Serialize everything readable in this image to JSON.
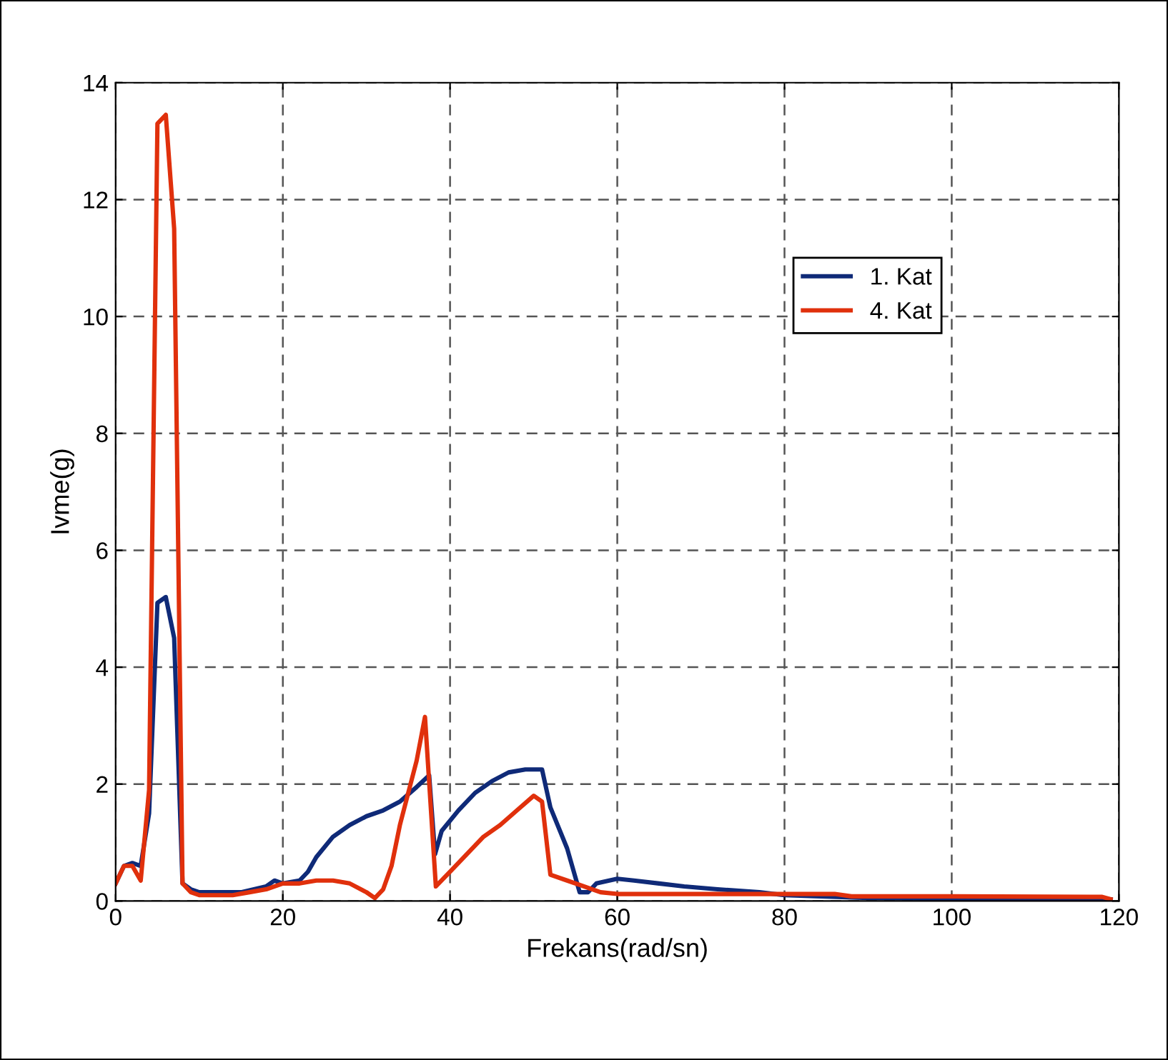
{
  "chart_data": {
    "type": "line",
    "xlabel": "Frekans(rad/sn)",
    "ylabel": "Ivme(g)",
    "xlim": [
      0,
      120
    ],
    "xticks": [
      0,
      20,
      40,
      60,
      80,
      100,
      120
    ],
    "ylim": [
      0,
      14
    ],
    "yticks": [
      0,
      2,
      4,
      6,
      8,
      10,
      12,
      14
    ],
    "grid": true,
    "legend": "right",
    "line_style": "solid",
    "series": [
      {
        "name": "1. Kat",
        "color": "#0f2a78",
        "x": [
          0,
          1,
          2,
          3,
          4,
          5,
          6,
          7,
          8,
          9,
          10,
          12,
          15,
          18,
          19,
          20,
          22,
          23,
          24,
          26,
          28,
          30,
          32,
          34,
          36,
          37.5,
          38.2,
          39,
          41,
          43,
          45,
          47,
          49,
          51,
          52,
          54,
          55.5,
          56.5,
          57.5,
          60,
          62,
          65,
          68,
          72,
          77,
          80,
          90,
          100,
          119
        ],
        "values": [
          0.3,
          0.6,
          0.65,
          0.6,
          1.5,
          5.1,
          5.2,
          4.5,
          0.3,
          0.2,
          0.15,
          0.15,
          0.15,
          0.25,
          0.35,
          0.3,
          0.35,
          0.5,
          0.75,
          1.1,
          1.3,
          1.45,
          1.55,
          1.7,
          1.95,
          2.15,
          0.8,
          1.2,
          1.55,
          1.85,
          2.05,
          2.2,
          2.25,
          2.25,
          1.6,
          0.9,
          0.15,
          0.15,
          0.3,
          0.38,
          0.35,
          0.3,
          0.25,
          0.2,
          0.15,
          0.1,
          0.05,
          0.04,
          0.03
        ]
      },
      {
        "name": "4. Kat",
        "color": "#e0300c",
        "x": [
          0,
          1,
          2,
          3,
          4,
          5,
          6,
          7,
          8,
          9,
          10,
          14,
          16,
          18,
          20,
          22,
          24,
          26,
          28,
          30,
          31,
          32,
          33,
          34,
          36,
          37,
          38.3,
          40,
          42,
          44,
          46,
          48,
          50,
          51,
          52,
          54,
          56,
          58,
          60,
          70,
          80,
          86,
          88,
          100,
          118,
          119
        ],
        "values": [
          0.3,
          0.6,
          0.6,
          0.35,
          1.9,
          13.3,
          13.45,
          11.5,
          0.3,
          0.15,
          0.1,
          0.1,
          0.15,
          0.2,
          0.3,
          0.3,
          0.35,
          0.35,
          0.3,
          0.15,
          0.05,
          0.2,
          0.6,
          1.3,
          2.4,
          3.15,
          0.25,
          0.5,
          0.8,
          1.1,
          1.3,
          1.55,
          1.8,
          1.7,
          0.45,
          0.35,
          0.25,
          0.15,
          0.12,
          0.12,
          0.12,
          0.12,
          0.08,
          0.08,
          0.07,
          0.03
        ]
      }
    ]
  }
}
